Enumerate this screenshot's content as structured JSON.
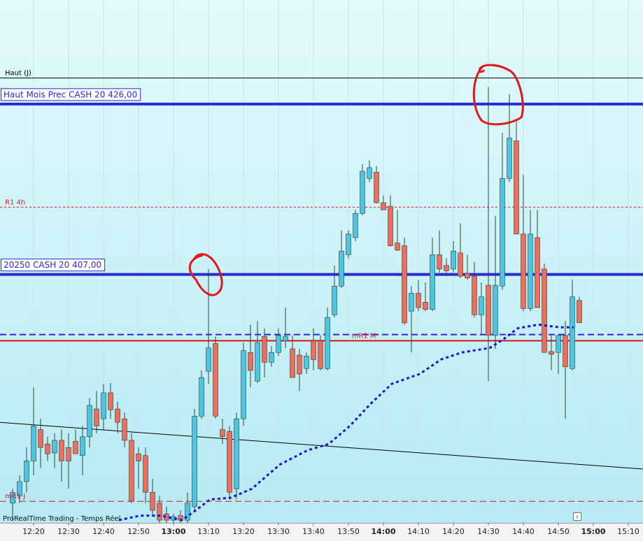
{
  "chart_data": {
    "type": "candlestick",
    "footer": "ProRealTime Trading - Temps Réel",
    "xlim": [
      730.4,
      914.2
    ],
    "ylim": [
      20379.3,
      20437.6
    ],
    "xticks": [
      {
        "value": 740,
        "label": "12:20"
      },
      {
        "value": 750,
        "label": "12:30"
      },
      {
        "value": 760,
        "label": "12:40"
      },
      {
        "value": 770,
        "label": "12:50"
      },
      {
        "value": 780,
        "label": "13:00"
      },
      {
        "value": 790,
        "label": "13:10"
      },
      {
        "value": 800,
        "label": "13:20"
      },
      {
        "value": 810,
        "label": "13:30"
      },
      {
        "value": 820,
        "label": "13:40"
      },
      {
        "value": 830,
        "label": "13:50"
      },
      {
        "value": 840,
        "label": "14:00"
      },
      {
        "value": 850,
        "label": "14:10"
      },
      {
        "value": 860,
        "label": "14:20"
      },
      {
        "value": 870,
        "label": "14:30"
      },
      {
        "value": 880,
        "label": "14:40"
      },
      {
        "value": 890,
        "label": "14:50"
      },
      {
        "value": 900,
        "label": "15:00"
      },
      {
        "value": 910,
        "label": "15:10"
      }
    ],
    "grid": true,
    "candles": {
      "color_up": "#4cc6e0",
      "color_down": "#e9705c",
      "x": [
        734,
        736,
        738,
        740,
        742,
        744,
        746,
        748,
        750,
        752,
        754,
        756,
        758,
        760,
        762,
        764,
        766,
        768,
        770,
        772,
        774,
        776,
        778,
        780,
        782,
        784,
        786,
        788,
        790,
        792,
        794,
        796,
        798,
        800,
        802,
        804,
        806,
        808,
        810,
        812,
        814,
        816,
        818,
        820,
        822,
        824,
        826,
        828,
        830,
        832,
        834,
        836,
        838,
        840,
        842,
        844,
        846,
        848,
        850,
        852,
        854,
        856,
        858,
        860,
        862,
        864,
        866,
        868,
        870,
        872,
        874,
        876,
        878,
        880,
        882,
        884,
        886,
        888,
        890,
        892,
        894,
        896
      ],
      "open": [
        20381.5,
        20382.3,
        20383.9,
        20386.2,
        20389.7,
        20388.1,
        20387.1,
        20388.5,
        20387.7,
        20388.4,
        20386.8,
        20388.9,
        20392.0,
        20390.9,
        20393.8,
        20392.0,
        20390.9,
        20388.5,
        20387.0,
        20386.8,
        20382.7,
        20381.5,
        20380.3,
        20379.6,
        20380.1,
        20379.6,
        20381.1,
        20391.2,
        20396.2,
        20399.3,
        20389.7,
        20389.5,
        20383.1,
        20390.9,
        20398.3,
        20395.1,
        20400.1,
        20397.2,
        20398.3,
        20399.6,
        20398.7,
        20398.0,
        20396.5,
        20399.6,
        20399.6,
        20396.5,
        20402.5,
        20405.7,
        20409.2,
        20411.1,
        20413.8,
        20417.7,
        20418.4,
        20415.0,
        20414.6,
        20410.5,
        20410.2,
        20402.9,
        20404.9,
        20403.9,
        20403.1,
        20409.2,
        20408.0,
        20407.6,
        20409.4,
        20407.1,
        20406.8,
        20402.5,
        20405.8,
        20400.2,
        20405.7,
        20417.7,
        20421.9,
        20411.5,
        20403.2,
        20411.1,
        20407.6,
        20398.4,
        20398.3,
        20400.2,
        20396.5,
        20404.1
      ],
      "high": [
        20383.1,
        20384.6,
        20387.7,
        20394.4,
        20390.9,
        20388.9,
        20389.3,
        20389.7,
        20389.3,
        20389.7,
        20390.1,
        20393.2,
        20394.0,
        20394.8,
        20394.9,
        20392.8,
        20391.6,
        20389.3,
        20387.7,
        20387.7,
        20384.2,
        20382.3,
        20381.1,
        20380.3,
        20380.7,
        20382.7,
        20392.0,
        20396.3,
        20407.6,
        20400.1,
        20390.9,
        20390.1,
        20391.6,
        20399.4,
        20401.4,
        20401.8,
        20401.0,
        20399.0,
        20401.0,
        20403.3,
        20400.2,
        20398.7,
        20398.3,
        20401.0,
        20400.2,
        20403.3,
        20408.0,
        20411.9,
        20411.9,
        20414.2,
        20419.3,
        20419.7,
        20419.1,
        20415.8,
        20415.8,
        20414.2,
        20411.1,
        20405.7,
        20406.4,
        20406.1,
        20411.1,
        20411.9,
        20408.8,
        20410.7,
        20412.7,
        20409.2,
        20408.4,
        20406.1,
        20427.9,
        20413.5,
        20422.8,
        20427.1,
        20424.0,
        20418.1,
        20414.2,
        20414.2,
        20408.2,
        20400.2,
        20400.2,
        20401.8,
        20406.4,
        20404.5
      ],
      "low": [
        20379.6,
        20381.5,
        20382.7,
        20384.6,
        20385.4,
        20386.2,
        20385.4,
        20383.9,
        20383.1,
        20387.0,
        20384.6,
        20387.7,
        20389.3,
        20389.7,
        20390.9,
        20389.3,
        20387.7,
        20381.5,
        20383.1,
        20381.5,
        20380.0,
        20379.3,
        20379.3,
        20379.3,
        20379.3,
        20379.3,
        20380.7,
        20390.9,
        20394.8,
        20390.9,
        20388.1,
        20381.9,
        20381.9,
        20390.1,
        20394.4,
        20394.9,
        20395.5,
        20396.7,
        20397.9,
        20398.8,
        20395.5,
        20394.0,
        20395.9,
        20396.3,
        20396.3,
        20396.3,
        20402.2,
        20405.5,
        20408.8,
        20410.7,
        20413.6,
        20417.3,
        20414.9,
        20414.2,
        20410.1,
        20409.6,
        20401.4,
        20398.3,
        20402.9,
        20402.9,
        20402.9,
        20407.2,
        20406.8,
        20407.2,
        20406.6,
        20406.4,
        20402.2,
        20400.2,
        20395.1,
        20398.7,
        20405.3,
        20417.3,
        20411.5,
        20402.9,
        20402.9,
        20403.3,
        20398.3,
        20396.3,
        20395.9,
        20390.9,
        20396.3,
        20401.6
      ],
      "close": [
        20382.7,
        20383.9,
        20386.2,
        20390.1,
        20387.7,
        20387.0,
        20388.5,
        20386.2,
        20386.2,
        20387.0,
        20388.9,
        20392.4,
        20390.1,
        20393.8,
        20391.9,
        20390.5,
        20388.5,
        20381.7,
        20386.2,
        20382.7,
        20380.7,
        20379.6,
        20379.6,
        20380.0,
        20379.6,
        20381.5,
        20391.2,
        20395.5,
        20398.8,
        20391.2,
        20388.9,
        20382.7,
        20390.9,
        20398.5,
        20396.3,
        20399.4,
        20397.2,
        20398.3,
        20400.2,
        20400.1,
        20395.5,
        20395.9,
        20397.9,
        20397.5,
        20396.5,
        20402.2,
        20405.7,
        20409.6,
        20411.5,
        20413.8,
        20418.5,
        20418.9,
        20415.0,
        20414.2,
        20410.2,
        20409.7,
        20401.6,
        20404.9,
        20403.3,
        20403.1,
        20409.2,
        20407.6,
        20407.4,
        20409.6,
        20406.8,
        20406.6,
        20402.5,
        20404.5,
        20400.2,
        20405.8,
        20417.7,
        20422.2,
        20411.5,
        20403.2,
        20411.5,
        20403.3,
        20398.3,
        20398.1,
        20400.2,
        20396.7,
        20404.5,
        20401.6
      ]
    },
    "levels": [
      {
        "label": "Haut (J)",
        "value": 20428.9,
        "color": "#000000",
        "width": 1,
        "style": "solid"
      },
      {
        "label": "Haut Mois Prec CASH 20 426,00",
        "value": 20426.0,
        "color": "#2b2bd6",
        "width": 4,
        "style": "solid",
        "boxed": true
      },
      {
        "label": "R1 4h",
        "value": 20414.5,
        "color": "#d42020",
        "width": 1,
        "style": "dotted"
      },
      {
        "label": "20250 CASH 20 407,00",
        "value": 20407.0,
        "color": "#2b2bd6",
        "width": 4,
        "style": "solid",
        "boxed": true
      },
      {
        "label": "mR1 M",
        "value": 20400.3,
        "color": "#2b2bd6",
        "width": 2,
        "style": "dashed",
        "label_color": "#d42020",
        "label_align": "center"
      },
      {
        "value": 20399.6,
        "color": "#e01010",
        "width": 2,
        "style": "solid"
      },
      {
        "label": "mR1 J",
        "value": 20381.7,
        "color": "#c02020",
        "width": 1,
        "style": "dashed"
      }
    ],
    "trend_line": {
      "color": "#000000",
      "x": [
        730.4,
        914.2
      ],
      "values": [
        20390.5,
        20385.3
      ]
    },
    "average": {
      "color": "#1515d8",
      "x": [
        764.4,
        770.4,
        776.4,
        782.4,
        786.4,
        790.4,
        796.4,
        802.4,
        810.4,
        818.4,
        824.4,
        830.4,
        836.4,
        842.4,
        850.4,
        856.4,
        862.4,
        870.4,
        874.4,
        878.4,
        884.4,
        890.4,
        894.4
      ],
      "values": [
        20379.6,
        20380.1,
        20380.1,
        20379.6,
        20380.7,
        20381.9,
        20382.1,
        20383.1,
        20385.8,
        20387.4,
        20388.1,
        20390.1,
        20392.6,
        20394.8,
        20395.9,
        20397.5,
        20398.3,
        20398.8,
        20399.8,
        20401.0,
        20401.4,
        20401.1,
        20401.1
      ]
    }
  }
}
